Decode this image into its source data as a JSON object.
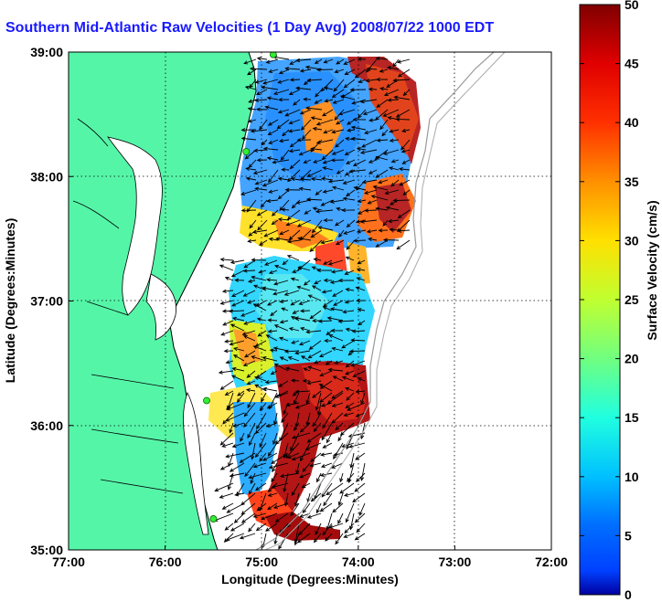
{
  "title": "Southern Mid-Atlantic Raw Velocities (1 Day Avg) 2008/07/22 1000 EDT",
  "map": {
    "xlabel": "Longitude (Degrees:Minutes)",
    "ylabel": "Latitude (Degrees:Minutes)",
    "x_ticks": [
      "77:00",
      "76:00",
      "75:00",
      "74:00",
      "73:00",
      "72:00"
    ],
    "y_ticks": [
      "39:00",
      "38:00",
      "37:00",
      "36:00",
      "35:00"
    ],
    "lon_range": [
      -77,
      -72
    ],
    "lat_range": [
      35,
      39
    ],
    "land_color": "#55f5a8",
    "grid": "dotted"
  },
  "colorbar": {
    "label": "Surface Velocity (cm/s)",
    "ticks": [
      "0",
      "5",
      "10",
      "15",
      "20",
      "25",
      "30",
      "35",
      "40",
      "45",
      "50"
    ],
    "min": 0,
    "max": 50,
    "colormap": "jet"
  },
  "stations": [
    {
      "lon": -74.88,
      "lat": 38.98
    },
    {
      "lon": -75.16,
      "lat": 38.2
    },
    {
      "lon": -75.57,
      "lat": 36.2
    },
    {
      "lon": -75.5,
      "lat": 35.25
    }
  ]
}
